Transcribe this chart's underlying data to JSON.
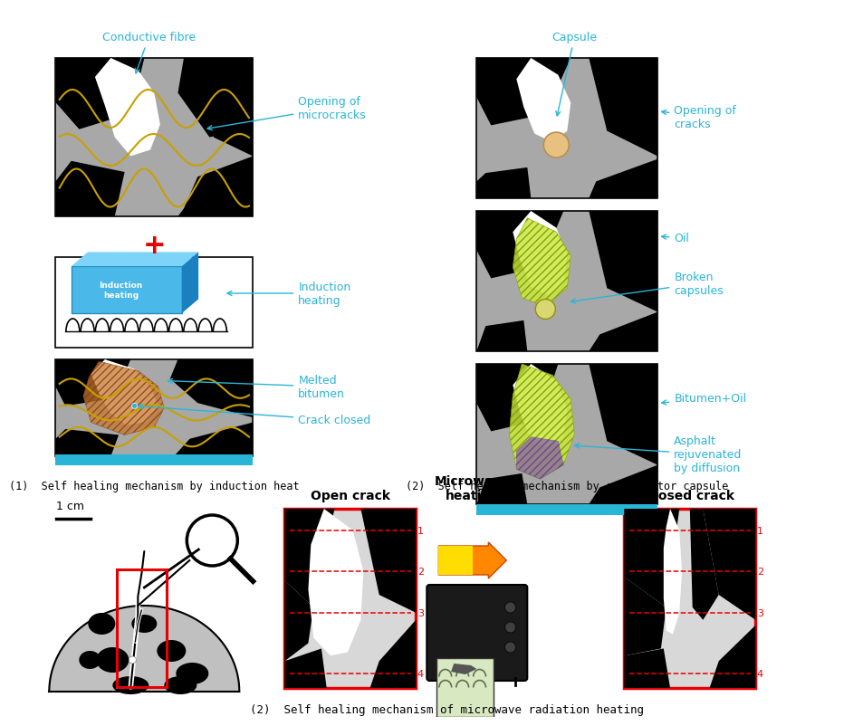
{
  "bg_color": "#ffffff",
  "cyan": "#2ab5d8",
  "red": "#e60000",
  "caption1": "(1)  Self healing mechanism by induction heat",
  "caption2": "(2)  Self healing mechanism by rejuvenator capsule",
  "caption3": "(2)  Self healing mechanism of microwave radiation heating",
  "gold": "#c8a000",
  "black": "#000000",
  "gray": "#b0b0b0",
  "panel_edge": "#000000",
  "cyan_bar": "#29b6d5"
}
